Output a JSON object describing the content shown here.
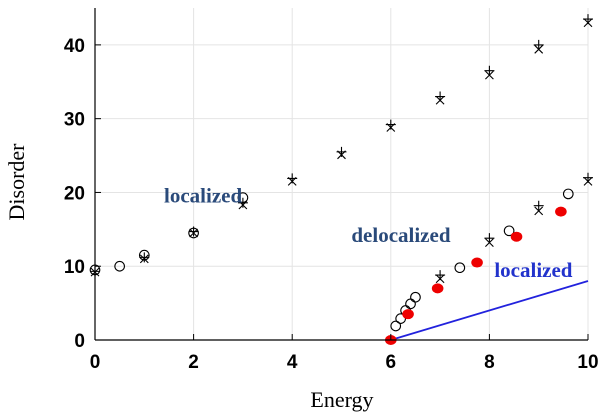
{
  "chart_data": {
    "type": "scatter",
    "xlabel": "Energy",
    "ylabel": "Disorder",
    "xlim": [
      0,
      10
    ],
    "ylim": [
      0,
      45
    ],
    "x_ticks": [
      0,
      2,
      4,
      6,
      8,
      10
    ],
    "y_ticks": [
      0,
      10,
      20,
      30,
      40
    ],
    "x_tick_labels": [
      "0",
      "2",
      "4",
      "6",
      "8",
      "10"
    ],
    "y_tick_labels": [
      "0",
      "10",
      "20",
      "30",
      "40"
    ],
    "grid": true,
    "series": [
      {
        "marker": "open-circle",
        "color": "#000000",
        "points": [
          [
            0,
            9.5
          ],
          [
            0.5,
            10
          ],
          [
            1,
            11.5
          ],
          [
            2,
            14.5
          ],
          [
            3,
            19.3
          ],
          [
            6.1,
            1.9
          ],
          [
            6.2,
            2.9
          ],
          [
            6.3,
            4
          ],
          [
            6.4,
            4.9
          ],
          [
            6.5,
            5.8
          ],
          [
            7.4,
            9.8
          ],
          [
            8.4,
            14.8
          ],
          [
            9.6,
            19.8
          ]
        ]
      },
      {
        "marker": "plus",
        "color": "#000000",
        "points": [
          [
            0,
            9.3
          ],
          [
            1,
            11.2
          ],
          [
            2,
            14.7
          ],
          [
            3,
            18.6
          ],
          [
            4,
            21.9
          ],
          [
            5,
            25.5
          ],
          [
            6,
            29.2
          ],
          [
            7,
            33
          ],
          [
            8,
            36.5
          ],
          [
            9,
            40
          ],
          [
            10,
            43.5
          ],
          [
            7,
            8.8
          ],
          [
            8,
            13.8
          ],
          [
            9,
            18.2
          ],
          [
            10,
            22
          ]
        ]
      },
      {
        "marker": "cross",
        "color": "#000000",
        "points": [
          [
            0,
            9.2
          ],
          [
            1,
            11
          ],
          [
            2,
            14.5
          ],
          [
            3,
            18.3
          ],
          [
            4,
            21.5
          ],
          [
            5,
            25.1
          ],
          [
            6,
            28.8
          ],
          [
            7,
            32.5
          ],
          [
            8,
            35.9
          ],
          [
            9,
            39.4
          ],
          [
            10,
            43
          ],
          [
            7,
            8.3
          ],
          [
            8,
            13.2
          ],
          [
            9,
            17.5
          ],
          [
            10,
            21.5
          ]
        ]
      },
      {
        "marker": "filled-circle",
        "color": "#ee0000",
        "points": [
          [
            6,
            0
          ],
          [
            6.35,
            3.5
          ],
          [
            6.95,
            7
          ],
          [
            7.75,
            10.5
          ],
          [
            8.55,
            14
          ],
          [
            9.45,
            17.4
          ]
        ]
      }
    ],
    "lines": [
      {
        "color": "#2222dd",
        "points": [
          [
            6,
            0
          ],
          [
            10,
            8
          ]
        ]
      }
    ],
    "annotations": [
      {
        "text": "localized",
        "x": 1.4,
        "y": 19.6,
        "color": "#2a4a7a"
      },
      {
        "text": "delocalized",
        "x": 5.2,
        "y": 14.2,
        "color": "#2a4a7a"
      },
      {
        "text": "localized",
        "x": 8.1,
        "y": 9.5,
        "color": "#2233cc"
      }
    ]
  }
}
